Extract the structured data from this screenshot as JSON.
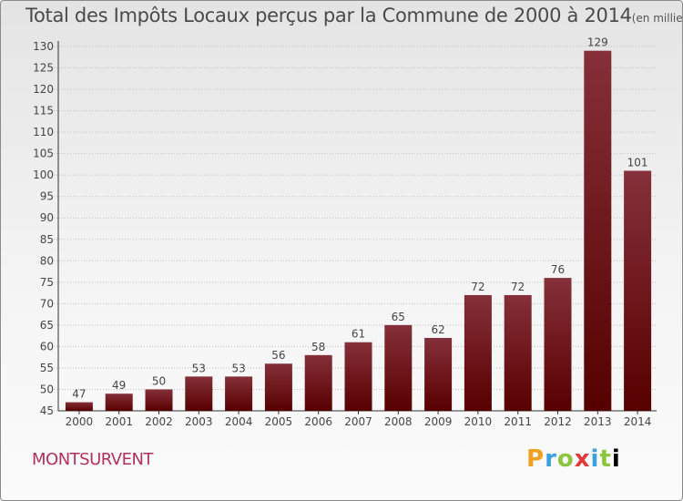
{
  "header": {
    "title": "Total des Impôts Locaux perçus par la Commune de 2000 à 2014",
    "unit": "(en milliers d'€)"
  },
  "commune": "MONTSURVENT",
  "logo": [
    "P",
    "r",
    "o",
    "x",
    "i",
    "t",
    "i"
  ],
  "colors": {
    "bar_top": "#85303a",
    "bar_bottom": "#570000",
    "grid": "#bfbfbf",
    "text": "#444444"
  },
  "chart_data": {
    "type": "bar",
    "title": "Total des Impôts Locaux perçus par la Commune de 2000 à 2014",
    "categories": [
      "2000",
      "2001",
      "2002",
      "2003",
      "2004",
      "2005",
      "2006",
      "2007",
      "2008",
      "2009",
      "2010",
      "2011",
      "2012",
      "2013",
      "2014"
    ],
    "values": [
      47,
      49,
      50,
      53,
      53,
      56,
      58,
      61,
      65,
      62,
      72,
      72,
      76,
      129,
      101
    ],
    "ylim": [
      45,
      130
    ],
    "yticks": [
      45,
      50,
      55,
      60,
      65,
      70,
      75,
      80,
      85,
      90,
      95,
      100,
      105,
      110,
      115,
      120,
      125,
      130
    ],
    "grid": true,
    "xlabel": "",
    "ylabel": ""
  }
}
